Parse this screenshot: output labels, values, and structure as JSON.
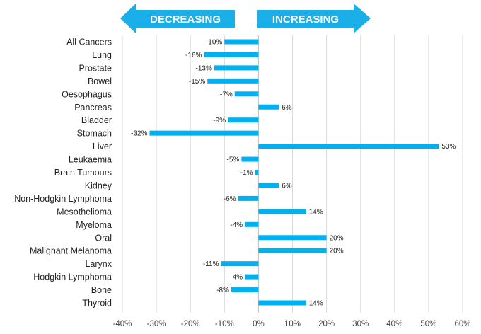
{
  "chart_data": {
    "type": "bar",
    "orientation": "horizontal",
    "categories": [
      "All Cancers",
      "Lung",
      "Prostate",
      "Bowel",
      "Oesophagus",
      "Pancreas",
      "Bladder",
      "Stomach",
      "Liver",
      "Leukaemia",
      "Brain Tumours",
      "Kidney",
      "Non-Hodgkin Lymphoma",
      "Mesothelioma",
      "Myeloma",
      "Oral",
      "Malignant Melanoma",
      "Larynx",
      "Hodgkin Lymphoma",
      "Bone",
      "Thyroid"
    ],
    "values": [
      -10,
      -16,
      -13,
      -15,
      -7,
      6,
      -9,
      -32,
      53,
      -5,
      -1,
      6,
      -6,
      14,
      -4,
      20,
      20,
      -11,
      -4,
      -8,
      14
    ],
    "value_labels": [
      "-10%",
      "-16%",
      "-13%",
      "-15%",
      "-7%",
      "6%",
      "-9%",
      "-32%",
      "53%",
      "-5%",
      "-1%",
      "6%",
      "-6%",
      "14%",
      "-4%",
      "20%",
      "20%",
      "-11%",
      "-4%",
      "-8%",
      "14%"
    ],
    "xlim": [
      -40,
      60
    ],
    "xticks": [
      -40,
      -30,
      -20,
      -10,
      0,
      10,
      20,
      30,
      40,
      50,
      60
    ],
    "xtick_labels": [
      "-40%",
      "-30%",
      "-20%",
      "-10%",
      "0%",
      "10%",
      "20%",
      "30%",
      "40%",
      "50%",
      "60%"
    ],
    "grid": "vertical",
    "legend": "none",
    "bar_color": "#00B0F0",
    "arrows": {
      "decreasing_label": "DECREASING",
      "increasing_label": "INCREASING",
      "color": "#1AAFE8"
    }
  }
}
